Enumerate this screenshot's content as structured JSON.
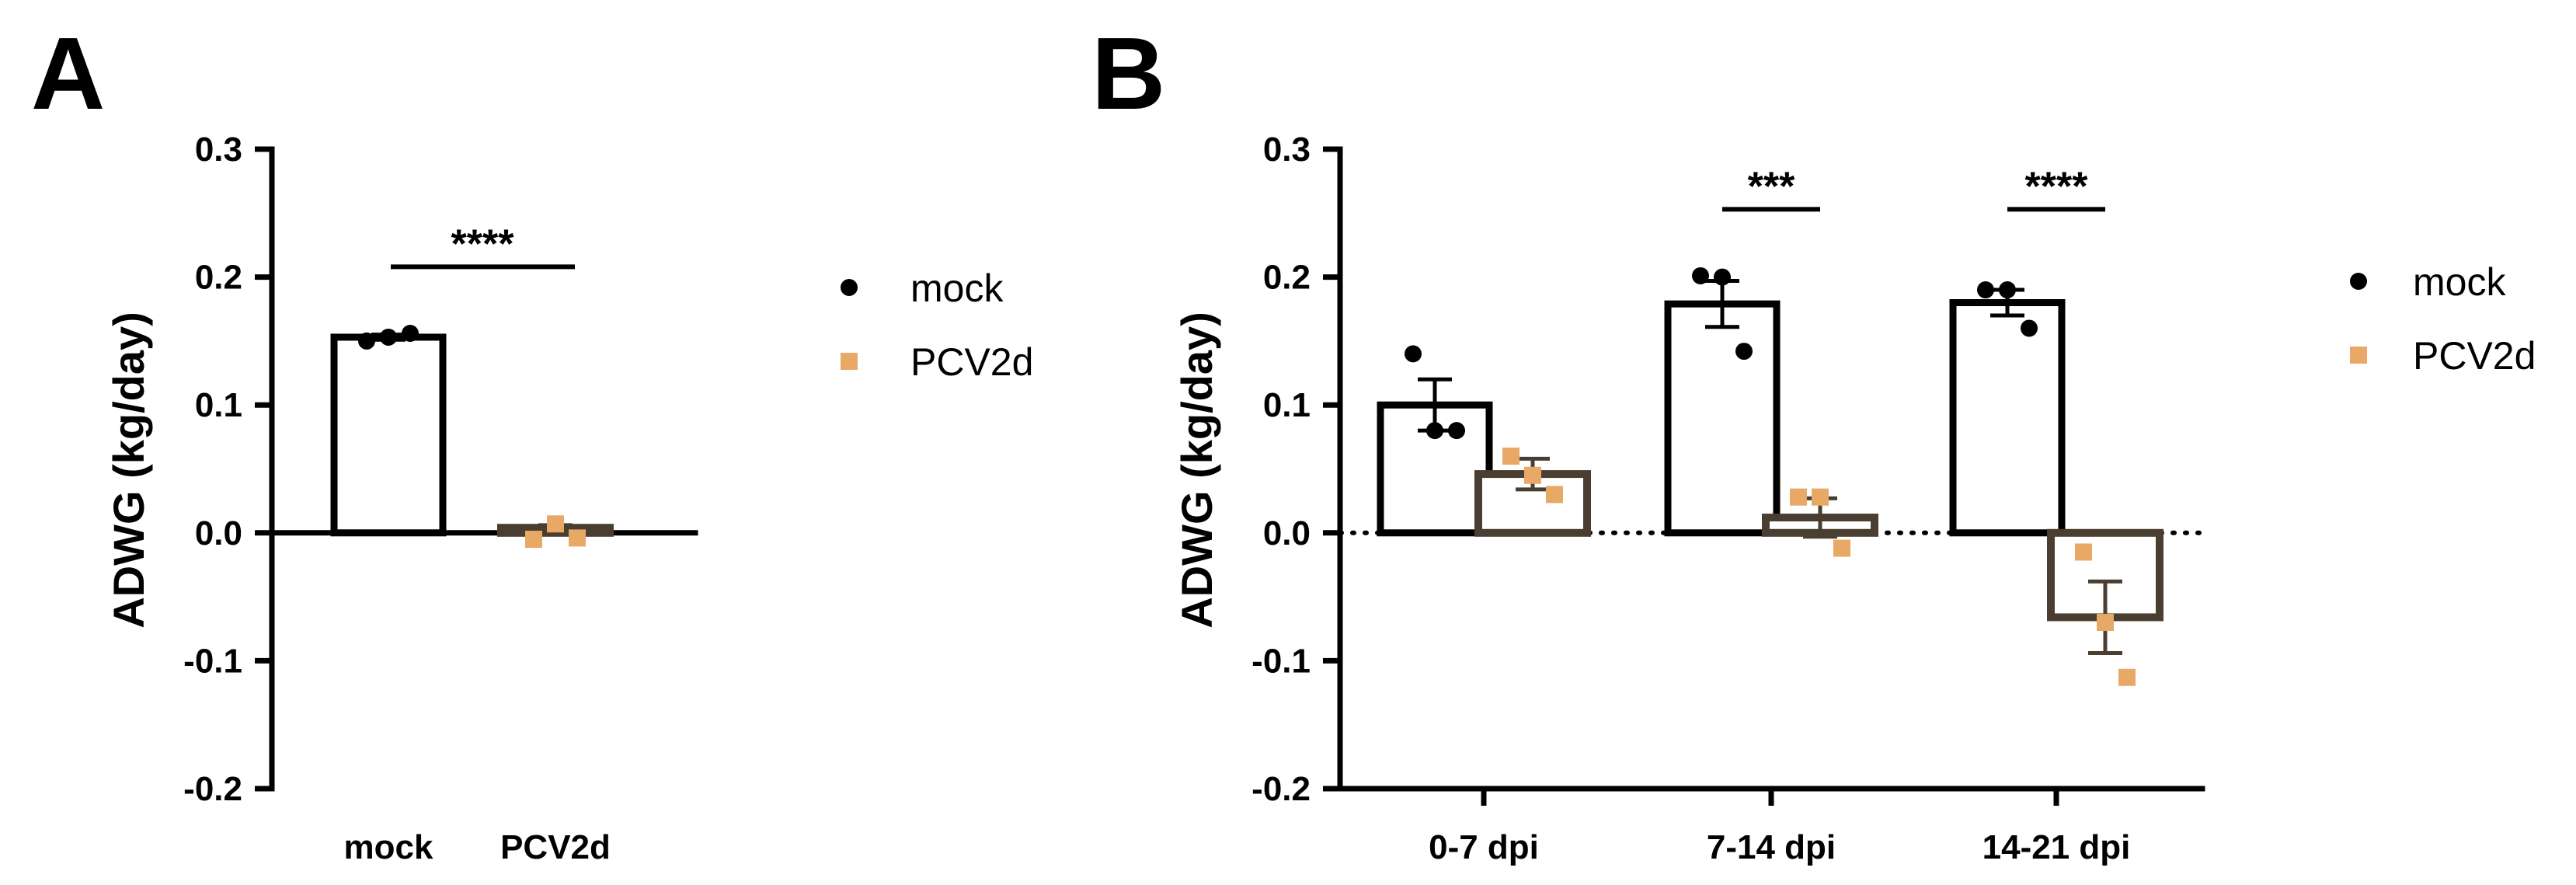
{
  "colors": {
    "mock": "#000000",
    "pcv2d_point": "#E8A866",
    "pcv2d_bar": "#4A3E30"
  },
  "chart_data": [
    {
      "panel": "A",
      "type": "bar",
      "ylabel": "ADWG (kg/day)",
      "xlabel": "",
      "ylim": [
        -0.2,
        0.3
      ],
      "yticks": [
        -0.2,
        -0.1,
        0.0,
        0.1,
        0.2,
        0.3
      ],
      "ytick_labels": [
        "-0.2",
        "-0.1",
        "0.0",
        "0.1",
        "0.2",
        "0.3"
      ],
      "zero_line": "solid",
      "categories": [
        "mock",
        "PCV2d"
      ],
      "series": [
        {
          "name": "mock",
          "means": [
            0.153
          ],
          "sem": [
            0.002
          ],
          "points": [
            [
              0.15,
              0.153,
              0.156
            ]
          ]
        },
        {
          "name": "PCV2d",
          "means": [
            0.004
          ],
          "sem": [
            0.002
          ],
          "points": [
            [
              -0.005,
              0.007,
              -0.004
            ]
          ]
        }
      ],
      "significance": [
        {
          "label": "****",
          "y": 0.208,
          "between": [
            "mock",
            "PCV2d"
          ]
        }
      ],
      "legend": {
        "placement": "right",
        "entries": [
          "mock",
          "PCV2d"
        ]
      }
    },
    {
      "panel": "B",
      "type": "bar",
      "ylabel": "ADWG (kg/day)",
      "xlabel": "",
      "ylim": [
        -0.2,
        0.3
      ],
      "yticks": [
        -0.2,
        -0.1,
        0.0,
        0.1,
        0.2,
        0.3
      ],
      "ytick_labels": [
        "-0.2",
        "-0.1",
        "0.0",
        "0.1",
        "0.2",
        "0.3"
      ],
      "zero_line": "dotted",
      "categories": [
        "0-7 dpi",
        "7-14 dpi",
        "14-21 dpi"
      ],
      "series": [
        {
          "name": "mock",
          "means": [
            0.1,
            0.179,
            0.18
          ],
          "sem": [
            0.02,
            0.018,
            0.01
          ],
          "points": [
            [
              0.14,
              0.08,
              0.08
            ],
            [
              0.201,
              0.2,
              0.142
            ],
            [
              0.19,
              0.19,
              0.16
            ]
          ]
        },
        {
          "name": "PCV2d",
          "means": [
            0.046,
            0.012,
            -0.066
          ],
          "sem": [
            0.012,
            0.015,
            0.028
          ],
          "points": [
            [
              0.06,
              0.045,
              0.03
            ],
            [
              0.028,
              0.028,
              -0.012
            ],
            [
              -0.015,
              -0.07,
              -0.113
            ]
          ]
        }
      ],
      "significance": [
        {
          "label": "***",
          "y": 0.253,
          "category": "7-14 dpi"
        },
        {
          "label": "****",
          "y": 0.253,
          "category": "14-21 dpi"
        }
      ],
      "legend": {
        "placement": "right",
        "entries": [
          "mock",
          "PCV2d"
        ]
      }
    }
  ]
}
